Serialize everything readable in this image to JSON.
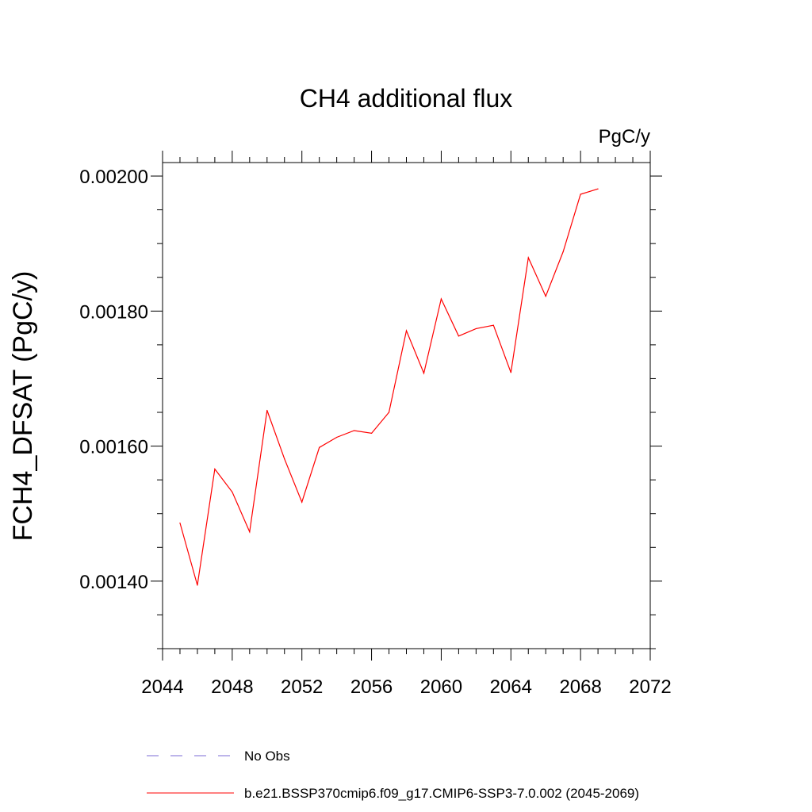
{
  "chart_data": {
    "type": "line",
    "title": "CH4 additional flux",
    "units": "PgC/y",
    "xlabel": "",
    "ylabel": "FCH4_DFSAT  (PgC/y)",
    "xlim": [
      2044,
      2072
    ],
    "ylim": [
      0.0013,
      0.00202
    ],
    "x_ticks": [
      2044,
      2048,
      2052,
      2056,
      2060,
      2064,
      2068,
      2072
    ],
    "x_tick_labels": [
      "2044",
      "2048",
      "2052",
      "2056",
      "2060",
      "2064",
      "2068",
      "2072"
    ],
    "y_ticks": [
      0.0014,
      0.0016,
      0.0018,
      0.002
    ],
    "y_tick_labels": [
      "0.00140",
      "0.00160",
      "0.00180",
      "0.00200"
    ],
    "grid": false,
    "series": [
      {
        "name": "b.e21.BSSP370cmip6.f09_g17.CMIP6-SSP3-7.0.002 (2045-2069)",
        "color": "#ff0000",
        "style": "solid",
        "x": [
          2045,
          2046,
          2047,
          2048,
          2049,
          2050,
          2051,
          2052,
          2053,
          2054,
          2055,
          2056,
          2057,
          2058,
          2059,
          2060,
          2061,
          2062,
          2063,
          2064,
          2065,
          2066,
          2067,
          2068,
          2069
        ],
        "y": [
          0.001486,
          0.001394,
          0.001566,
          0.001532,
          0.001473,
          0.001653,
          0.001581,
          0.001517,
          0.001598,
          0.001613,
          0.001623,
          0.001619,
          0.00165,
          0.001771,
          0.001708,
          0.001818,
          0.001763,
          0.001774,
          0.001779,
          0.001709,
          0.001879,
          0.001822,
          0.001888,
          0.001973,
          0.001981
        ]
      }
    ],
    "legend": {
      "placement": "bottom-left",
      "entries": [
        {
          "label": "No Obs",
          "color": "#7b6bd6",
          "style": "dashed"
        },
        {
          "label": "b.e21.BSSP370cmip6.f09_g17.CMIP6-SSP3-7.0.002 (2045-2069)",
          "color": "#ff0000",
          "style": "solid"
        }
      ]
    }
  }
}
